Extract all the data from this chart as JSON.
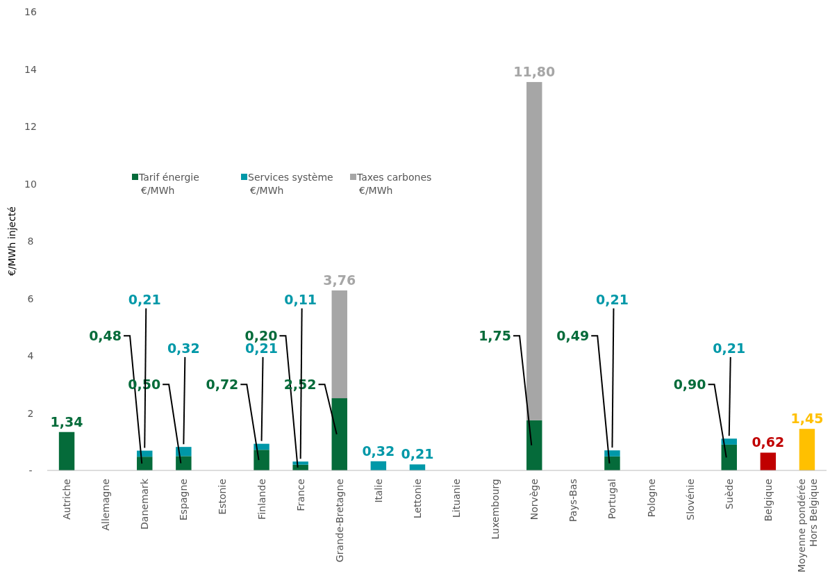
{
  "chart_data": {
    "type": "bar",
    "stacked": true,
    "ylabel": "€/MWh injecté",
    "ylim": [
      0,
      16
    ],
    "yticks": [
      {
        "value": 0,
        "label": "-"
      },
      2,
      4,
      6,
      8,
      10,
      12,
      14,
      16
    ],
    "grid": false,
    "legend": "top left",
    "categories": [
      "Autriche",
      "Allemagne",
      "Danemark",
      "Espagne",
      "Estonie",
      "Finlande",
      "France",
      "Grande-Bretagne",
      "Italie",
      "Lettonie",
      "Lituanie",
      "Luxembourg",
      "Norvège",
      "Pays-Bas",
      "Portugal",
      "Pologne",
      "Slovénie",
      "Suède",
      "Belgique",
      "Moyenne pondérée Hors Belgique"
    ],
    "series": [
      {
        "name": "Tarif énergie €/MWh",
        "color": "#056b3a",
        "values": [
          1.34,
          null,
          0.48,
          0.5,
          null,
          0.72,
          0.2,
          2.52,
          null,
          null,
          null,
          null,
          1.75,
          null,
          0.49,
          null,
          null,
          0.9,
          null,
          null
        ],
        "value_labels": [
          "1,34",
          null,
          "0,48",
          "0,50",
          null,
          "0,72",
          "0,20",
          "2,52",
          null,
          null,
          null,
          null,
          "1,75",
          null,
          "0,49",
          null,
          null,
          "0,90",
          null,
          null
        ]
      },
      {
        "color": "#c00000",
        "values": [
          null,
          null,
          null,
          null,
          null,
          null,
          null,
          null,
          null,
          null,
          null,
          null,
          null,
          null,
          null,
          null,
          null,
          null,
          0.62,
          null
        ],
        "value_labels": [
          null,
          null,
          null,
          null,
          null,
          null,
          null,
          null,
          null,
          null,
          null,
          null,
          null,
          null,
          null,
          null,
          null,
          null,
          "0,62",
          null
        ]
      },
      {
        "color": "#ffc000",
        "values": [
          null,
          null,
          null,
          null,
          null,
          null,
          null,
          null,
          null,
          null,
          null,
          null,
          null,
          null,
          null,
          null,
          null,
          null,
          null,
          1.45
        ],
        "value_labels": [
          null,
          null,
          null,
          null,
          null,
          null,
          null,
          null,
          null,
          null,
          null,
          null,
          null,
          null,
          null,
          null,
          null,
          null,
          null,
          "1,45"
        ]
      },
      {
        "name": "Services système €/MWh",
        "color": "#0098a8",
        "values": [
          null,
          null,
          0.21,
          0.32,
          null,
          0.21,
          0.11,
          null,
          0.32,
          0.21,
          null,
          null,
          null,
          null,
          0.21,
          null,
          null,
          0.21,
          null,
          null
        ],
        "value_labels": [
          null,
          null,
          "0,21",
          "0,32",
          null,
          "0,21",
          "0,11",
          null,
          "0,32",
          "0,21",
          null,
          null,
          null,
          null,
          "0,21",
          null,
          null,
          "0,21",
          null,
          null
        ]
      },
      {
        "name": "Taxes carbones €/MWh",
        "color": "#a6a6a6",
        "values": [
          null,
          null,
          null,
          null,
          null,
          null,
          null,
          3.76,
          null,
          null,
          null,
          null,
          11.8,
          null,
          null,
          null,
          null,
          null,
          null,
          null
        ],
        "value_labels": [
          null,
          null,
          null,
          null,
          null,
          null,
          null,
          "3,76",
          null,
          null,
          null,
          null,
          "11,80",
          null,
          null,
          null,
          null,
          null,
          null,
          null
        ]
      }
    ]
  }
}
